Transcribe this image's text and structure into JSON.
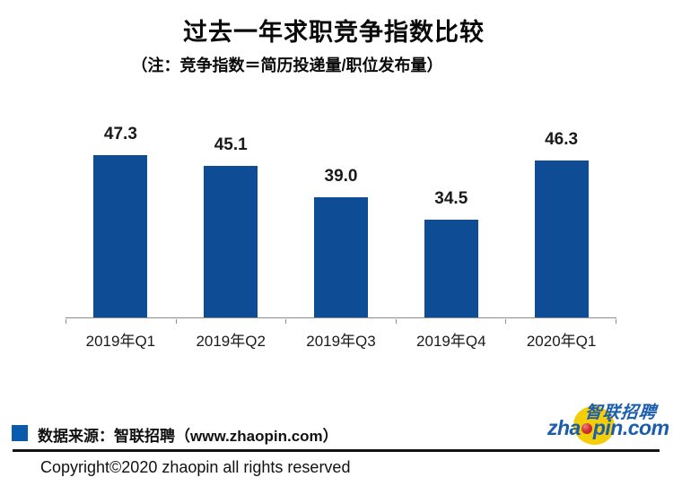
{
  "header": {
    "title": "过去一年求职竞争指数比较",
    "subtitle": "（注：竞争指数＝简历投递量/职位发布量）"
  },
  "chart_data": {
    "type": "bar",
    "title": "过去一年求职竞争指数比较",
    "categories": [
      "2019年Q1",
      "2019年Q2",
      "2019年Q3",
      "2019年Q4",
      "2020年Q1"
    ],
    "values": [
      47.3,
      45.1,
      39.0,
      34.5,
      46.3
    ],
    "value_labels": [
      "47.3",
      "45.1",
      "39.0",
      "34.5",
      "46.3"
    ],
    "series_name": "竞争指数",
    "xlabel": "",
    "ylabel": "",
    "ylim": [
      15,
      50
    ],
    "grid": false,
    "legend_position": "bottom-left",
    "bar_color": "#0E4D96",
    "axis_color": "#8C8C8C"
  },
  "footer": {
    "source_label": "数据来源：智联招聘（www.zhaopin.com）",
    "copyright": "Copyright©2020 zhaopin all rights reserved",
    "legend_marker_color": "#0B5BAD"
  },
  "logo": {
    "brand_cn": "智联招聘",
    "en_prefix": "zha",
    "en_suffix": "pin.com",
    "colors": {
      "blue": "#1A5CAD",
      "yellow": "#F5CE0A",
      "red": "#C8232C"
    }
  }
}
